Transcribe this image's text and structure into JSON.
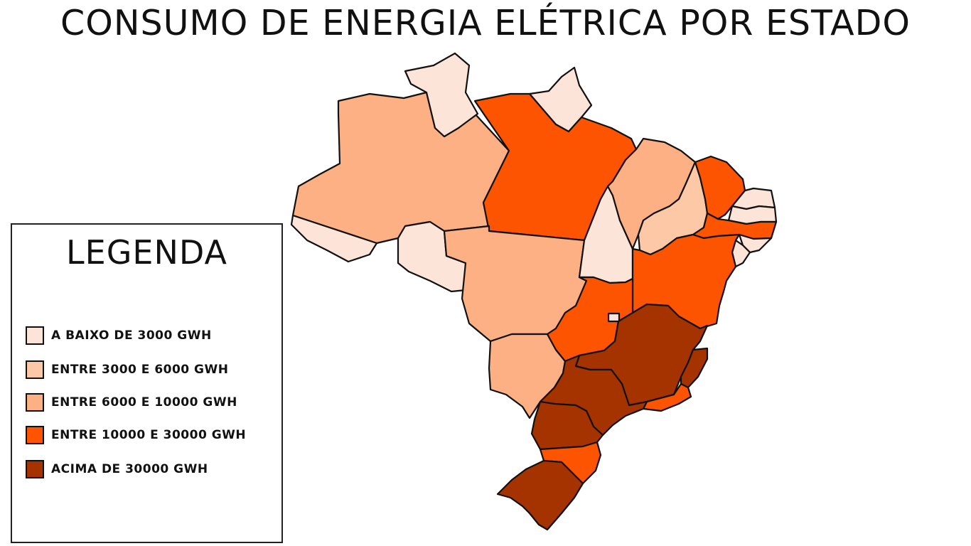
{
  "title": "CONSUMO DE ENERGIA ELÉTRICA POR ESTADO",
  "legend": {
    "title": "LEGENDA",
    "items": [
      {
        "label": "A BAIXO DE 3000 GWH",
        "color": "#fde4d8"
      },
      {
        "label": "ENTRE 3000 E 6000 GWH",
        "color": "#fcc8a6"
      },
      {
        "label": "ENTRE 6000 E 10000 GWH",
        "color": "#fcb083"
      },
      {
        "label": "ENTRE 10000 E 30000 GWH",
        "color": "#fc5400"
      },
      {
        "label": "ACIMA DE 30000 GWH",
        "color": "#a43300"
      }
    ]
  },
  "states": [
    {
      "id": "AC",
      "category": 0
    },
    {
      "id": "RR",
      "category": 0
    },
    {
      "id": "AP",
      "category": 0
    },
    {
      "id": "RO",
      "category": 0
    },
    {
      "id": "TO",
      "category": 0
    },
    {
      "id": "RN",
      "category": 0
    },
    {
      "id": "PB",
      "category": 0
    },
    {
      "id": "AL",
      "category": 0
    },
    {
      "id": "SE",
      "category": 0
    },
    {
      "id": "DF",
      "category": 0
    },
    {
      "id": "PI",
      "category": 1
    },
    {
      "id": "AM",
      "category": 2
    },
    {
      "id": "MT",
      "category": 2
    },
    {
      "id": "MS",
      "category": 2
    },
    {
      "id": "MA",
      "category": 2
    },
    {
      "id": "PA",
      "category": 3
    },
    {
      "id": "CE",
      "category": 3
    },
    {
      "id": "PE",
      "category": 3
    },
    {
      "id": "BA",
      "category": 3
    },
    {
      "id": "GO",
      "category": 3
    },
    {
      "id": "RJ",
      "category": 3
    },
    {
      "id": "SC",
      "category": 3
    },
    {
      "id": "ES",
      "category": 4
    },
    {
      "id": "MG",
      "category": 4
    },
    {
      "id": "SP",
      "category": 4
    },
    {
      "id": "PR",
      "category": 4
    },
    {
      "id": "RS",
      "category": 4
    }
  ]
}
